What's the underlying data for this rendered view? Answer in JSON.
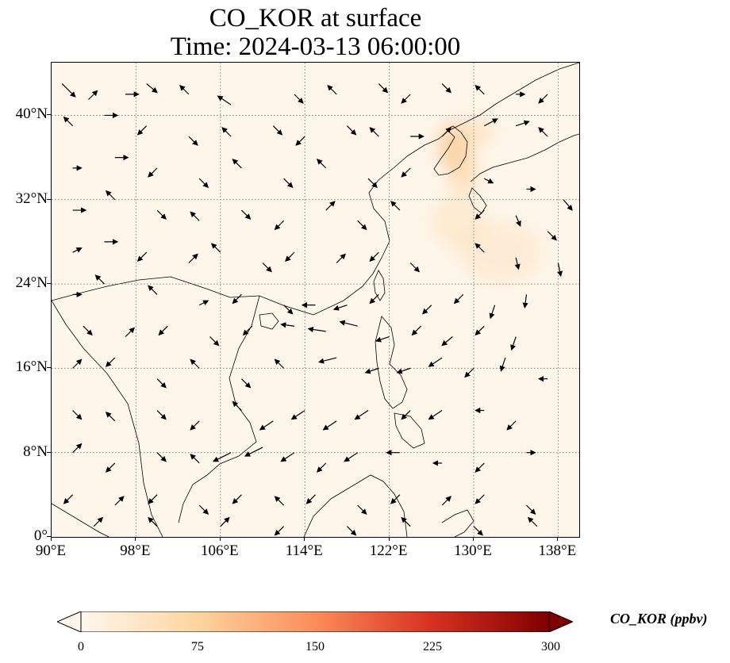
{
  "title": {
    "line1": "CO_KOR at surface",
    "line2": "Time: 2024-03-13 06:00:00"
  },
  "map": {
    "extent": {
      "lon_min": 90,
      "lon_max": 140,
      "lat_min": 0,
      "lat_max": 45
    },
    "lat_ticks": [
      {
        "value": 0,
        "label": "0°"
      },
      {
        "value": 8,
        "label": "8°N"
      },
      {
        "value": 16,
        "label": "16°N"
      },
      {
        "value": 24,
        "label": "24°N"
      },
      {
        "value": 32,
        "label": "32°N"
      },
      {
        "value": 40,
        "label": "40°N"
      }
    ],
    "lon_ticks": [
      {
        "value": 90,
        "label": "90°E"
      },
      {
        "value": 98,
        "label": "98°E"
      },
      {
        "value": 106,
        "label": "106°E"
      },
      {
        "value": 114,
        "label": "114°E"
      },
      {
        "value": 122,
        "label": "122°E"
      },
      {
        "value": 130,
        "label": "130°E"
      },
      {
        "value": 138,
        "label": "138°E"
      }
    ],
    "gridlines": true,
    "background_color": "#fef6ea",
    "plume_color": "#fdd3a4",
    "coastline_color": "#000000",
    "plume": [
      {
        "lon": 128.2,
        "lat": 37.0,
        "rlon": 1.6,
        "rlat": 2.4,
        "opacity": 0.9
      },
      {
        "lon": 129.0,
        "lat": 34.5,
        "rlon": 1.4,
        "rlat": 2.0,
        "opacity": 0.6
      },
      {
        "lon": 128.5,
        "lat": 30.0,
        "rlon": 2.5,
        "rlat": 2.5,
        "opacity": 0.35
      },
      {
        "lon": 132.5,
        "lat": 27.0,
        "rlon": 4.0,
        "rlat": 3.0,
        "opacity": 0.3
      },
      {
        "lon": 130.5,
        "lat": 38.5,
        "rlon": 1.5,
        "rlat": 1.5,
        "opacity": 0.4
      }
    ],
    "wind_vectors": [
      [
        91,
        43,
        1.5,
        -1.5
      ],
      [
        93.5,
        41.5,
        1,
        1
      ],
      [
        97,
        42,
        1.5,
        0
      ],
      [
        99,
        43,
        1.2,
        -1
      ],
      [
        103,
        42,
        -1,
        1
      ],
      [
        107,
        41,
        -1.5,
        1
      ],
      [
        113,
        42,
        1,
        -1
      ],
      [
        117,
        42,
        -1,
        1
      ],
      [
        121,
        43,
        1,
        -1
      ],
      [
        124,
        42,
        -1,
        -1
      ],
      [
        127,
        43,
        1,
        -1
      ],
      [
        131,
        42,
        -1,
        1
      ],
      [
        134,
        42,
        1,
        0
      ],
      [
        137,
        42,
        -1,
        -1
      ],
      [
        92,
        39,
        -1,
        1
      ],
      [
        95,
        40,
        1.5,
        0
      ],
      [
        99,
        39,
        -1,
        -1
      ],
      [
        103,
        38,
        1,
        -1
      ],
      [
        107,
        38,
        -1,
        1
      ],
      [
        111,
        39,
        1,
        -1
      ],
      [
        114,
        38,
        -1,
        -1
      ],
      [
        118,
        39,
        1,
        -1
      ],
      [
        121,
        38,
        -1,
        1
      ],
      [
        124,
        38,
        1.5,
        0
      ],
      [
        127,
        38,
        1,
        1
      ],
      [
        131,
        39,
        1.5,
        0.8
      ],
      [
        134,
        39,
        1.5,
        0.5
      ],
      [
        137,
        38,
        -1,
        1
      ],
      [
        92,
        35,
        1,
        0
      ],
      [
        96,
        36,
        1.5,
        0
      ],
      [
        100,
        35,
        -1,
        -1
      ],
      [
        104,
        34,
        1,
        -1
      ],
      [
        108,
        35,
        -1,
        1
      ],
      [
        112,
        34,
        1,
        -1
      ],
      [
        116,
        35,
        -1,
        1
      ],
      [
        120,
        34,
        1,
        -1
      ],
      [
        124,
        35,
        -1,
        -1
      ],
      [
        131,
        34,
        1,
        -0.5
      ],
      [
        135,
        33,
        1,
        0
      ],
      [
        138.5,
        32,
        1,
        -1.2
      ],
      [
        92,
        31,
        1.5,
        0
      ],
      [
        96,
        32,
        -1,
        1
      ],
      [
        100,
        31,
        1,
        -1
      ],
      [
        104,
        30,
        -1,
        1
      ],
      [
        108,
        31,
        1,
        -1
      ],
      [
        112,
        30,
        -1,
        -1
      ],
      [
        116,
        31,
        1,
        1
      ],
      [
        119,
        30,
        1,
        -1
      ],
      [
        123,
        31,
        -1,
        1
      ],
      [
        131,
        31,
        -1,
        -1
      ],
      [
        134,
        30.5,
        0.5,
        -1.2
      ],
      [
        137,
        29,
        1,
        -1
      ],
      [
        92,
        27,
        1,
        0.5
      ],
      [
        95,
        28,
        1.5,
        0
      ],
      [
        99,
        27,
        -1,
        -1
      ],
      [
        103,
        26,
        1,
        1
      ],
      [
        106,
        27,
        -1,
        1
      ],
      [
        110,
        26,
        1,
        -1
      ],
      [
        113,
        27,
        -1,
        -1
      ],
      [
        117,
        26,
        1,
        1
      ],
      [
        121,
        27,
        -1,
        -1
      ],
      [
        124,
        26,
        1,
        -1
      ],
      [
        131,
        27,
        -1,
        1
      ],
      [
        134,
        26.5,
        0.3,
        -1.3
      ],
      [
        138,
        26,
        0.3,
        -1.5
      ],
      [
        92,
        23,
        1,
        0
      ],
      [
        95,
        24,
        -1,
        1
      ],
      [
        100,
        23,
        -1,
        1
      ],
      [
        104,
        22,
        1,
        0.5
      ],
      [
        108,
        23,
        -1,
        -1
      ],
      [
        112,
        22,
        1,
        -1
      ],
      [
        115,
        22,
        -1.5,
        0
      ],
      [
        118,
        22,
        -1.5,
        -0.5
      ],
      [
        121,
        23,
        -1,
        -1
      ],
      [
        126,
        22,
        -1,
        -1
      ],
      [
        129,
        23,
        -1,
        -1
      ],
      [
        132,
        22,
        -0.5,
        -1.5
      ],
      [
        135,
        23,
        -0.2,
        -1.5
      ],
      [
        93,
        20,
        1,
        -1
      ],
      [
        97,
        19,
        1,
        1
      ],
      [
        101,
        20,
        -1,
        -1
      ],
      [
        105,
        19,
        1,
        -1
      ],
      [
        109,
        20,
        -1,
        -1
      ],
      [
        113,
        20,
        -1.5,
        0.2
      ],
      [
        116,
        19.5,
        -2,
        0.3
      ],
      [
        119,
        20,
        -2,
        0.5
      ],
      [
        122,
        19,
        -1.5,
        -0.5
      ],
      [
        125,
        20,
        -1,
        -1
      ],
      [
        128,
        19,
        -1.2,
        -1
      ],
      [
        131,
        20,
        -1,
        -1
      ],
      [
        134,
        19,
        -0.5,
        -1.5
      ],
      [
        92,
        16,
        1,
        1
      ],
      [
        96,
        17,
        -1,
        -1
      ],
      [
        100,
        15,
        1,
        -1
      ],
      [
        104,
        16,
        -1,
        1
      ],
      [
        108,
        15,
        1,
        -1
      ],
      [
        112,
        16,
        -1,
        1
      ],
      [
        117,
        17,
        -2,
        -0.5
      ],
      [
        121,
        16,
        -1.5,
        -0.5
      ],
      [
        124,
        16,
        -1.5,
        -0.5
      ],
      [
        127,
        17,
        -1.5,
        -1
      ],
      [
        130,
        16,
        -1,
        -1
      ],
      [
        133,
        17,
        -0.5,
        -1.5
      ],
      [
        137,
        15,
        -1,
        0
      ],
      [
        92,
        12,
        1,
        -1
      ],
      [
        96,
        11,
        -1,
        1
      ],
      [
        100,
        12,
        1,
        -1
      ],
      [
        104,
        11,
        -1,
        -1
      ],
      [
        108,
        12,
        -1,
        1
      ],
      [
        111,
        11,
        -1.5,
        -1
      ],
      [
        114,
        12,
        -1.5,
        -1
      ],
      [
        117,
        11,
        -1.5,
        -1
      ],
      [
        120,
        12,
        -1.5,
        -1
      ],
      [
        124,
        12,
        -1,
        -1
      ],
      [
        127,
        12,
        -1.5,
        -1
      ],
      [
        131,
        12,
        -1,
        0
      ],
      [
        134,
        11,
        -1,
        -1
      ],
      [
        92,
        8,
        1,
        1
      ],
      [
        96,
        7,
        -1,
        -1
      ],
      [
        100,
        8,
        1,
        -1
      ],
      [
        104,
        7,
        -1,
        1
      ],
      [
        107,
        8,
        -2,
        -1
      ],
      [
        110,
        8.5,
        -2,
        -1
      ],
      [
        113,
        8,
        -1.5,
        -1
      ],
      [
        116,
        7,
        -1,
        -1
      ],
      [
        119,
        8,
        -1.5,
        -1
      ],
      [
        123,
        8,
        -1.5,
        0
      ],
      [
        127,
        7,
        -1,
        0
      ],
      [
        131,
        7,
        -1,
        -1
      ],
      [
        135,
        8,
        1,
        0
      ],
      [
        92,
        4,
        -1,
        -1
      ],
      [
        96,
        3,
        1,
        1
      ],
      [
        100,
        4,
        -1,
        -1
      ],
      [
        104,
        3,
        1,
        -1
      ],
      [
        108,
        4,
        -1,
        -1
      ],
      [
        112,
        3,
        -1,
        1
      ],
      [
        115,
        4,
        -1,
        -1
      ],
      [
        119,
        3,
        1,
        -1
      ],
      [
        123,
        4,
        -1,
        -1
      ],
      [
        127,
        3,
        1,
        1
      ],
      [
        131,
        4,
        -1,
        -1
      ],
      [
        135,
        3,
        1,
        -1
      ],
      [
        94,
        1,
        1,
        1
      ],
      [
        100,
        1,
        -1,
        1
      ],
      [
        106,
        1,
        1,
        1
      ],
      [
        112,
        1,
        -1,
        -1
      ],
      [
        118,
        1,
        1,
        -1
      ],
      [
        124,
        1,
        -1,
        1
      ],
      [
        130,
        1,
        1,
        -1
      ],
      [
        136,
        1,
        -1,
        1
      ]
    ]
  },
  "colorbar": {
    "label": "CO_KOR (ppbv)",
    "min": 0,
    "max": 300,
    "ticks": [
      "0",
      "75",
      "150",
      "225",
      "300"
    ],
    "colors": [
      "#fff7ec",
      "#fdd49e",
      "#fc8d59",
      "#d7301f",
      "#7f0000"
    ]
  }
}
